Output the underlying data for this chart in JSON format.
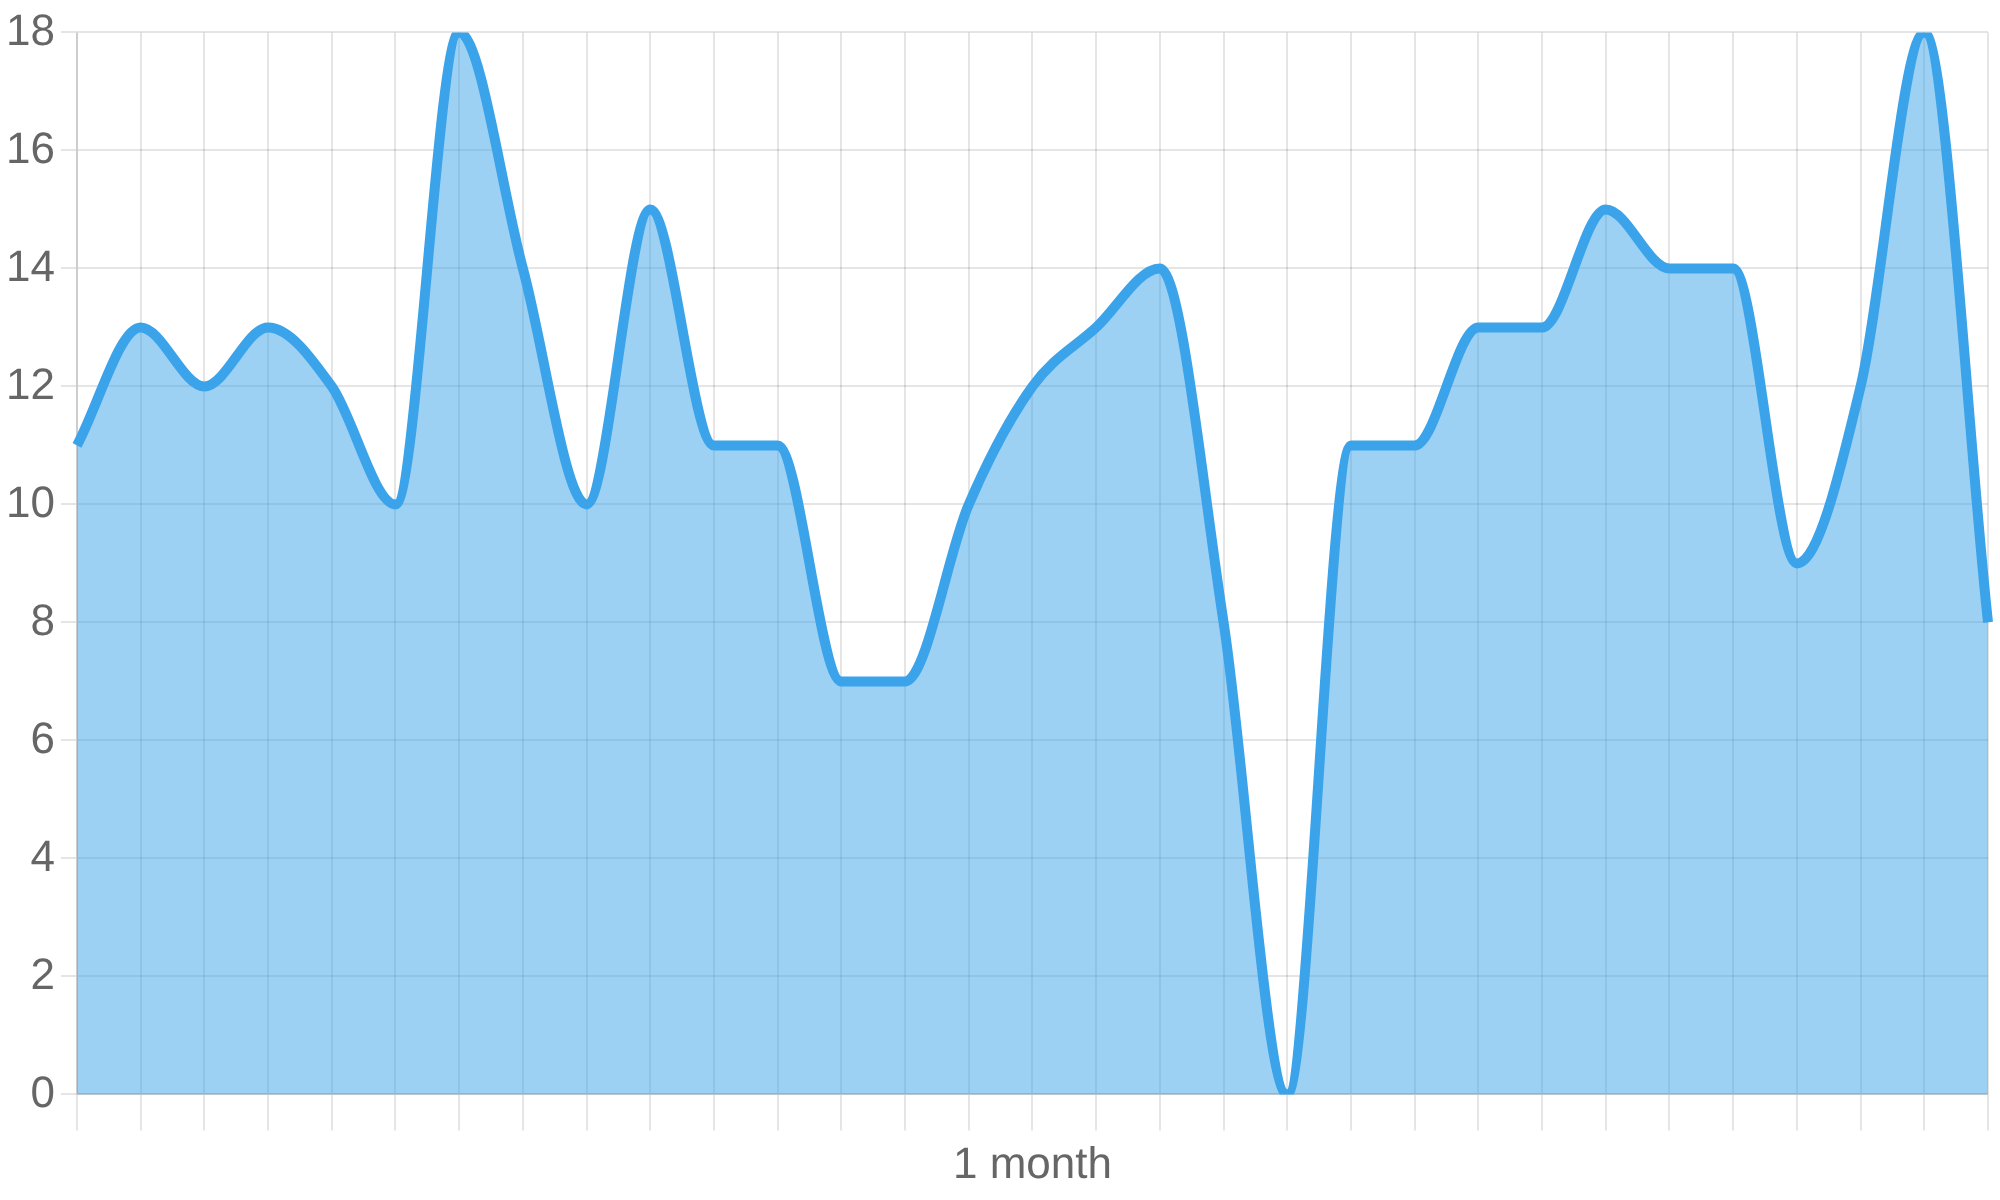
{
  "chart_data": {
    "type": "area",
    "xlabel": "1 month",
    "categories": [
      null,
      null,
      null,
      null,
      null,
      null,
      null,
      null,
      null,
      null,
      null,
      null,
      null,
      null,
      null,
      null,
      null,
      null,
      null,
      null,
      null,
      null,
      null,
      null,
      null,
      null,
      null,
      null,
      null,
      null,
      null
    ],
    "series": [
      {
        "color": "#3ba3ea",
        "values": [
          11,
          13,
          12,
          13,
          12,
          10,
          18,
          14,
          10,
          15,
          11,
          11,
          7,
          7,
          10,
          12,
          13,
          14,
          8,
          0,
          11,
          11,
          13,
          13,
          15,
          14,
          14,
          9,
          12,
          18,
          8
        ]
      }
    ],
    "ylim": [
      0,
      18
    ],
    "yticks": [
      0,
      2,
      4,
      6,
      8,
      10,
      12,
      14,
      16,
      18
    ],
    "grid": true,
    "legend": false,
    "marker": "none",
    "line_style": "solid"
  }
}
